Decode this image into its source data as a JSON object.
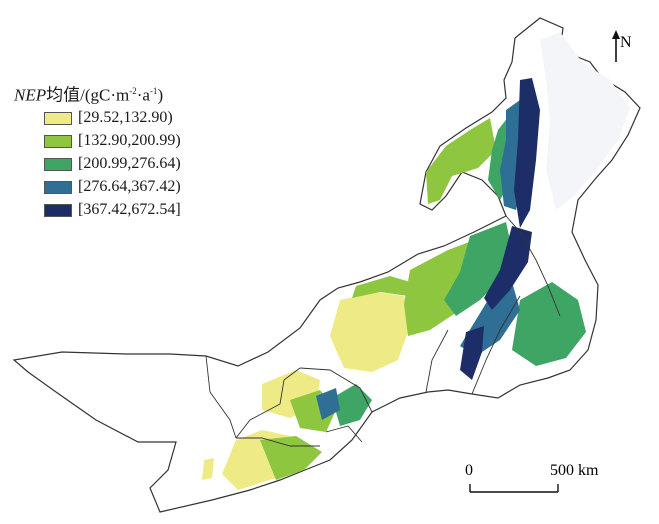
{
  "legend": {
    "title_var": "NEP",
    "title_mean": "均值",
    "title_unit_prefix": "/(gC·m",
    "title_exp1": "-2",
    "title_unit_mid": "·a",
    "title_exp2": "-1",
    "title_unit_suffix": ")",
    "classes": [
      {
        "label": "[29.52,132.90)",
        "color": "#eeeb86"
      },
      {
        "label": "[132.90,200.99)",
        "color": "#8ec63f"
      },
      {
        "label": "[200.99,276.64)",
        "color": "#3fa565"
      },
      {
        "label": "[276.64,367.42)",
        "color": "#2f6f96"
      },
      {
        "label": "[367.42,672.54]",
        "color": "#1c2d68"
      }
    ]
  },
  "north_arrow": {
    "label": "N"
  },
  "scale_bar": {
    "zero": "0",
    "max": "500 km"
  }
}
